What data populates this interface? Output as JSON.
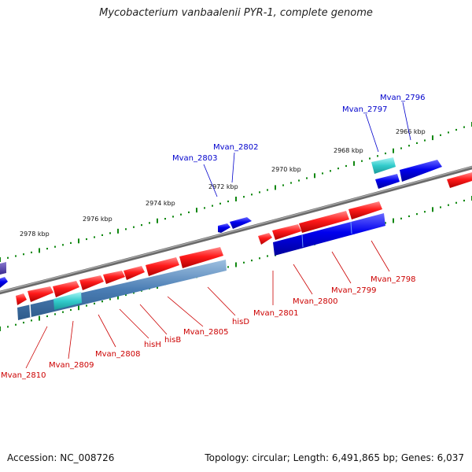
{
  "title": "Mycobacterium vanbaalenii PYR-1, complete genome",
  "footer": {
    "accession": "Accession: NC_008726",
    "summary": "Topology: circular; Length: 6,491,865 bp; Genes: 6,037"
  },
  "colors": {
    "forward_cds": "#ff1a1a",
    "reverse_cds": "#0000ee",
    "forward_gene": "#4a7db4",
    "highlight": "#33cccc",
    "backbone": "#808080",
    "tick": "#118811",
    "label_forward": "#0000cc",
    "label_reverse": "#cc0000"
  },
  "scale_labels": [
    {
      "text": "2966 kbp"
    },
    {
      "text": "2968 kbp"
    },
    {
      "text": "2970 kbp"
    },
    {
      "text": "2972 kbp"
    },
    {
      "text": "2974 kbp"
    },
    {
      "text": "2976 kbp"
    },
    {
      "text": "2978 kbp"
    }
  ],
  "upper_labels": [
    {
      "text": "Mvan_2796"
    },
    {
      "text": "Mvan_2797"
    },
    {
      "text": "Mvan_2802"
    },
    {
      "text": "Mvan_2803"
    }
  ],
  "lower_labels": [
    {
      "text": "Mvan_2798"
    },
    {
      "text": "Mvan_2799"
    },
    {
      "text": "Mvan_2800"
    },
    {
      "text": "Mvan_2801"
    },
    {
      "text": "hisD"
    },
    {
      "text": "Mvan_2805"
    },
    {
      "text": "hisB"
    },
    {
      "text": "hisH"
    },
    {
      "text": "Mvan_2808"
    },
    {
      "text": "Mvan_2809"
    },
    {
      "text": "Mvan_2810"
    }
  ]
}
